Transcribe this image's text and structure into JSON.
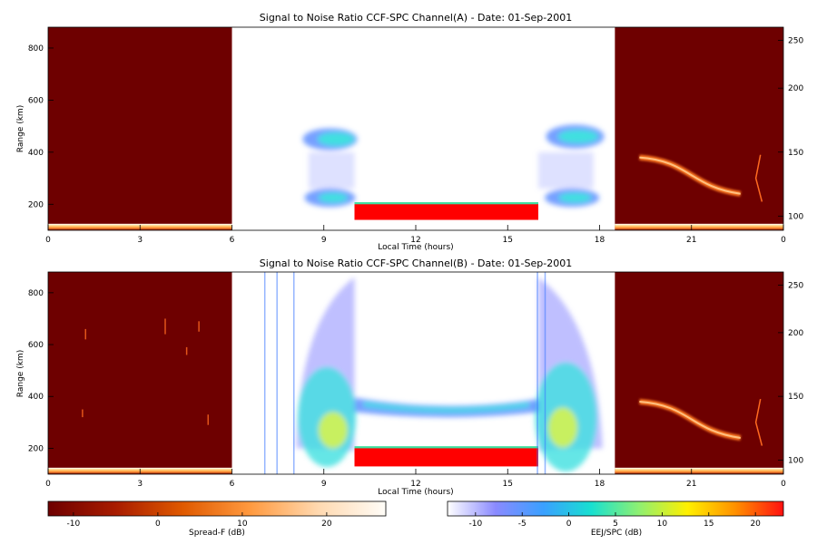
{
  "chart_data": [
    {
      "type": "heatmap",
      "title": "Signal to Noise Ratio CCF-SPC Channel(A) - Date: 01-Sep-2001",
      "xlabel": "Local Time (hours)",
      "ylabel": "Range (km)",
      "x_ticks": [
        "0",
        "3",
        "6",
        "9",
        "12",
        "15",
        "18",
        "21",
        "0"
      ],
      "y_ticks_left": [
        "200",
        "400",
        "600",
        "800"
      ],
      "y_ticks_right": [
        "100",
        "150",
        "200",
        "250"
      ],
      "xlim": [
        0,
        24
      ],
      "ylim": [
        100,
        880
      ],
      "features": {
        "night_background": [
          [
            0,
            6
          ],
          [
            18.5,
            24
          ]
        ],
        "daytime_ionosphere": [
          8,
          10,
          16,
          18.3
        ],
        "eej_band": {
          "x": [
            10,
            16
          ],
          "range_km": [
            140,
            200
          ]
        },
        "spread_f_trace": {
          "x": [
            19.3,
            22.6
          ],
          "range_km": [
            380,
            240
          ]
        }
      }
    },
    {
      "type": "heatmap",
      "title": "Signal to Noise Ratio CCF-SPC Channel(B) - Date: 01-Sep-2001",
      "xlabel": "Local Time (hours)",
      "ylabel": "Range (km)",
      "x_ticks": [
        "0",
        "3",
        "6",
        "9",
        "12",
        "15",
        "18",
        "21",
        "0"
      ],
      "y_ticks_left": [
        "200",
        "400",
        "600",
        "800"
      ],
      "y_ticks_right": [
        "100",
        "150",
        "200",
        "250"
      ],
      "xlim": [
        0,
        24
      ],
      "ylim": [
        100,
        880
      ],
      "features": {
        "night_background": [
          [
            0,
            6
          ],
          [
            18.5,
            24
          ]
        ],
        "daytime_ionosphere": [
          8,
          10,
          16,
          18.3
        ],
        "eej_band": {
          "x": [
            10,
            16
          ],
          "range_km": [
            130,
            200
          ]
        },
        "spread_f_trace": {
          "x": [
            19.3,
            22.6
          ],
          "range_km": [
            380,
            240
          ]
        }
      }
    }
  ],
  "colorbars": [
    {
      "label": "Spread-F (dB)",
      "ticks": [
        "-10",
        "0",
        "10",
        "20"
      ],
      "range": [
        -13,
        27
      ],
      "colors": [
        "#6e0000",
        "#a81c00",
        "#e05a00",
        "#ff9a40",
        "#ffd9b0",
        "#fffdf8"
      ]
    },
    {
      "label": "EEJ/SPC (dB)",
      "ticks": [
        "-10",
        "-5",
        "0",
        "5",
        "10",
        "15",
        "20"
      ],
      "range": [
        -13,
        23
      ],
      "colors": [
        "#ffffff",
        "#8a8aff",
        "#3aa0ff",
        "#18e0d0",
        "#90f070",
        "#fff000",
        "#ff9000",
        "#ff1010"
      ]
    }
  ],
  "colors": {
    "night": "#6e0000",
    "eej": "#ff0000",
    "profile_blue": "#3c78ff",
    "profile_cyan": "#40e0e0"
  }
}
